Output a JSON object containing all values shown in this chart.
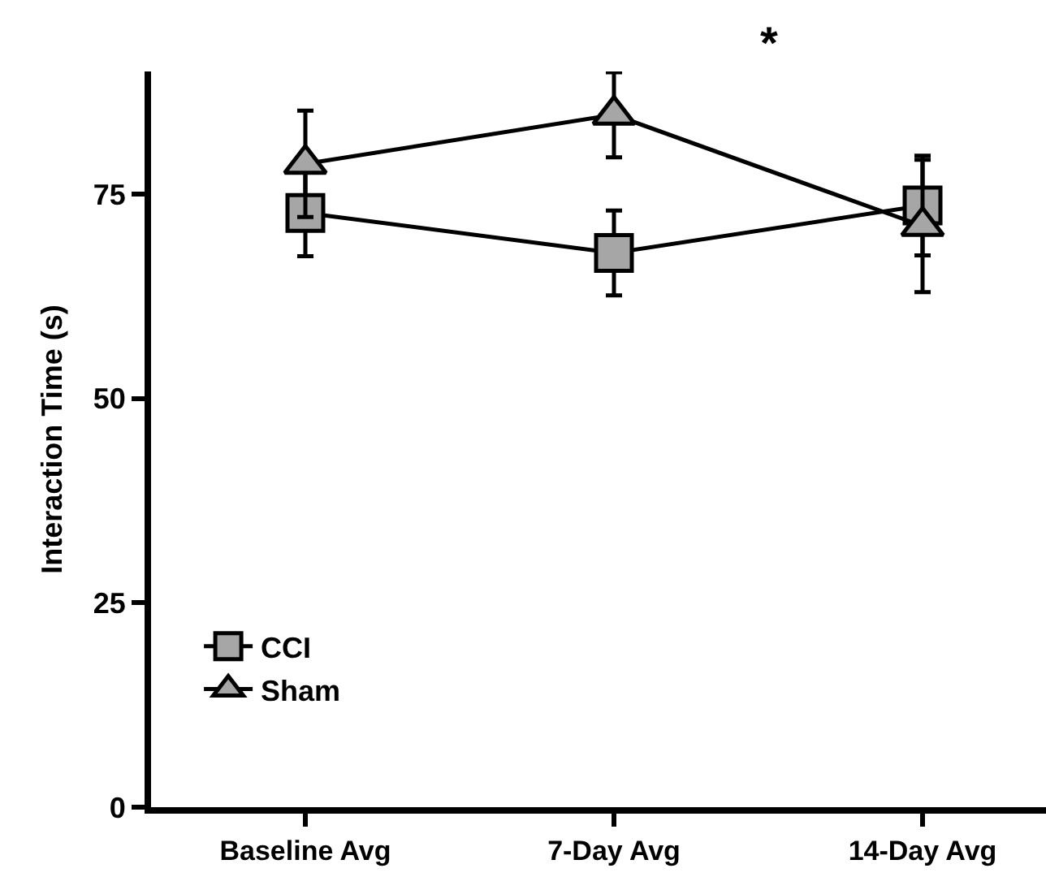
{
  "chart_data": {
    "type": "line",
    "ylabel": "Interaction Time (s)",
    "categories": [
      "Baseline Avg",
      "7-Day Avg",
      "14-Day Avg"
    ],
    "ylim": [
      0,
      90
    ],
    "yticks": [
      0,
      25,
      50,
      75
    ],
    "legend": "bottom left",
    "series": [
      {
        "name": "CCI",
        "color": "#a6a6a6",
        "marker": "square",
        "values": [
          72.7,
          67.8,
          73.6
        ],
        "errors": [
          5.3,
          5.2,
          6.1
        ]
      },
      {
        "name": "Sham",
        "color": "#a6a6a6",
        "marker": "triangle",
        "values": [
          78.7,
          84.7,
          71.1
        ],
        "errors": [
          6.5,
          5.2,
          8.1
        ]
      }
    ],
    "annotations": [
      "*"
    ]
  }
}
